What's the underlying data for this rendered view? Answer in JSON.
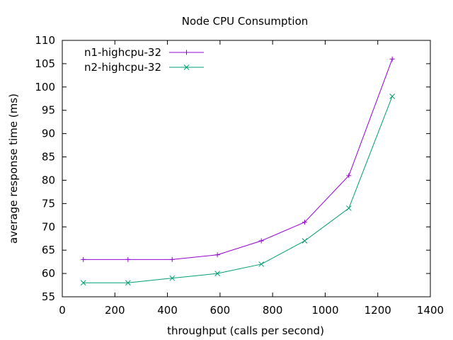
{
  "chart_data": {
    "type": "line",
    "title": "Node CPU Consumption",
    "xlabel": "throughput (calls per second)",
    "ylabel": "average response time (ms)",
    "xlim": [
      0,
      1400
    ],
    "ylim": [
      55,
      110
    ],
    "xticks": [
      0,
      200,
      400,
      600,
      800,
      1000,
      1200,
      1400
    ],
    "yticks": [
      55,
      60,
      65,
      70,
      75,
      80,
      85,
      90,
      95,
      100,
      105,
      110
    ],
    "grid": false,
    "legend_position": "top-left",
    "series": [
      {
        "name": "n1-highcpu-32",
        "color": "#9400d3",
        "marker": "plus",
        "x": [
          80,
          250,
          418,
          590,
          757,
          922,
          1090,
          1255
        ],
        "y": [
          63,
          63,
          63,
          64,
          67,
          71,
          81,
          106
        ]
      },
      {
        "name": "n2-highcpu-32",
        "color": "#009e73",
        "marker": "cross",
        "x": [
          80,
          250,
          418,
          590,
          757,
          922,
          1090,
          1255
        ],
        "y": [
          58,
          58,
          59,
          60,
          62,
          67,
          74,
          98
        ]
      }
    ]
  }
}
